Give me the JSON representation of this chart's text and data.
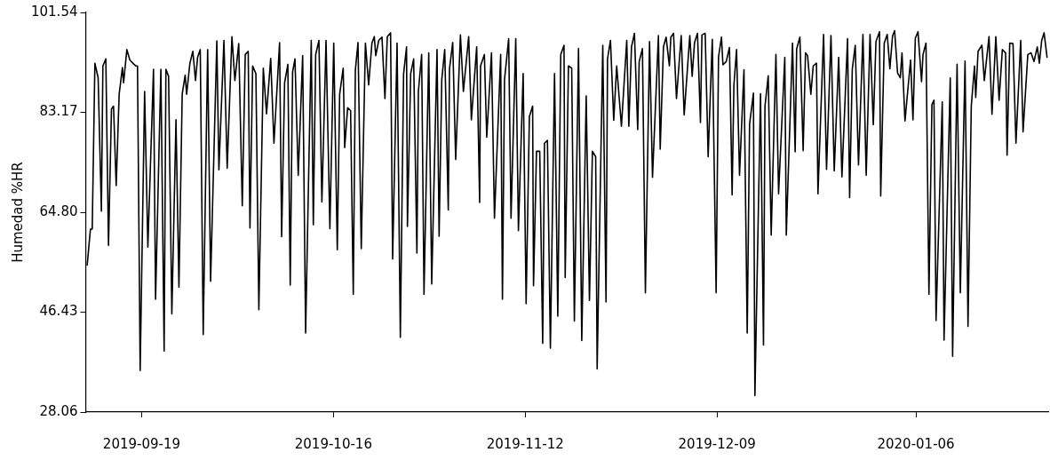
{
  "chart_data": {
    "type": "line",
    "ylabel": "Humedad %HR",
    "grid": false,
    "legend": false,
    "marker": "none",
    "line_style": "solid",
    "xlim": [
      "2019-09-11T03:00",
      "2020-01-24T15:00"
    ],
    "xticks": [
      "2019-09-19",
      "2019-10-16",
      "2019-11-12",
      "2019-12-09",
      "2020-01-06"
    ],
    "ylim": [
      28.06,
      101.54
    ],
    "yticks": [
      28.06,
      46.43,
      {
        "value": 64.8,
        "label": "64.80"
      },
      83.17,
      101.54
    ],
    "series": [
      {
        "color": "#000000",
        "x": [
          "2019-09-11T08:00",
          "2019-09-11T19:00",
          "2019-09-12T01:00",
          "2019-09-12T10:00",
          "2019-09-12T21:00",
          "2019-09-13T08:00",
          "2019-09-13T13:00",
          "2019-09-13T23:00",
          "2019-09-14T08:00",
          "2019-09-14T18:00",
          "2019-09-15T01:00",
          "2019-09-15T10:00",
          "2019-09-15T20:00",
          "2019-09-16T07:00",
          "2019-09-16T11:00",
          "2019-09-16T22:00",
          "2019-09-17T08:00",
          "2019-09-17T22:00",
          "2019-09-18T05:00",
          "2019-09-18T10:00",
          "2019-09-18T19:00",
          "2019-09-19T10:00",
          "2019-09-19T21:00",
          "2019-09-20T16:00",
          "2019-09-20T23:00",
          "2019-09-21T17:00",
          "2019-09-22T04:00",
          "2019-09-22T10:00",
          "2019-09-22T19:00",
          "2019-09-23T06:00",
          "2019-09-23T20:00",
          "2019-09-24T06:00",
          "2019-09-24T17:00",
          "2019-09-25T03:00",
          "2019-09-25T08:00",
          "2019-09-25T19:00",
          "2019-09-26T05:00",
          "2019-09-26T14:00",
          "2019-09-26T21:00",
          "2019-09-27T06:00",
          "2019-09-27T16:00",
          "2019-09-28T07:00",
          "2019-09-28T17:00",
          "2019-09-29T14:00",
          "2019-09-29T21:00",
          "2019-09-30T14:00",
          "2019-10-01T01:00",
          "2019-10-01T17:00",
          "2019-10-02T03:00",
          "2019-10-02T16:00",
          "2019-10-03T04:00",
          "2019-10-03T14:00",
          "2019-10-04T00:00",
          "2019-10-04T06:00",
          "2019-10-04T15:00",
          "2019-10-05T02:00",
          "2019-10-05T12:00",
          "2019-10-06T03:00",
          "2019-10-06T14:00",
          "2019-10-07T04:00",
          "2019-10-07T15:00",
          "2019-10-08T10:00",
          "2019-10-08T17:00",
          "2019-10-09T03:00",
          "2019-10-09T14:00",
          "2019-10-09T22:00",
          "2019-10-10T06:00",
          "2019-10-10T14:00",
          "2019-10-11T01:00",
          "2019-10-11T16:00",
          "2019-10-12T02:00",
          "2019-10-12T21:00",
          "2019-10-13T04:00",
          "2019-10-13T12:00",
          "2019-10-13T23:00",
          "2019-10-14T09:00",
          "2019-10-14T23:00",
          "2019-10-15T12:00",
          "2019-10-16T01:00",
          "2019-10-16T13:00",
          "2019-10-16T21:00",
          "2019-10-17T09:00",
          "2019-10-17T14:00",
          "2019-10-18T00:00",
          "2019-10-18T10:00",
          "2019-10-18T19:00",
          "2019-10-19T02:00",
          "2019-10-19T11:00",
          "2019-10-19T22:00",
          "2019-10-20T12:00",
          "2019-10-20T23:00",
          "2019-10-21T10:00",
          "2019-10-21T18:00",
          "2019-10-21T23:00",
          "2019-10-22T09:00",
          "2019-10-22T20:00",
          "2019-10-23T06:00",
          "2019-10-23T14:00",
          "2019-10-24T01:00",
          "2019-10-24T08:00",
          "2019-10-24T23:00",
          "2019-10-25T10:00",
          "2019-10-25T21:00",
          "2019-10-26T07:00",
          "2019-10-26T10:00",
          "2019-10-26T21:00",
          "2019-10-27T07:00",
          "2019-10-27T18:00",
          "2019-10-27T23:00",
          "2019-10-28T10:00",
          "2019-10-28T18:00",
          "2019-10-29T10:00",
          "2019-10-29T20:00",
          "2019-10-30T14:00",
          "2019-10-30T21:00",
          "2019-10-31T06:00",
          "2019-10-31T16:00",
          "2019-11-01T04:00",
          "2019-11-01T08:00",
          "2019-11-01T19:00",
          "2019-11-02T05:00",
          "2019-11-02T21:00",
          "2019-11-03T07:00",
          "2019-11-04T01:00",
          "2019-11-04T10:00",
          "2019-11-05T04:00",
          "2019-11-05T14:00",
          "2019-11-05T17:00",
          "2019-11-06T06:00",
          "2019-11-06T14:00",
          "2019-11-07T06:00",
          "2019-11-07T16:00",
          "2019-11-08T13:00",
          "2019-11-08T19:00",
          "2019-11-09T02:00",
          "2019-11-09T16:00",
          "2019-11-10T00:00",
          "2019-11-10T16:00",
          "2019-11-11T01:00",
          "2019-11-11T17:00",
          "2019-11-12T03:00",
          "2019-11-12T14:00",
          "2019-11-13T01:00",
          "2019-11-13T04:00",
          "2019-11-13T14:00",
          "2019-11-14T01:00",
          "2019-11-14T11:00",
          "2019-11-14T17:00",
          "2019-11-15T03:00",
          "2019-11-15T13:00",
          "2019-11-16T03:00",
          "2019-11-16T14:00",
          "2019-11-17T00:00",
          "2019-11-17T11:00",
          "2019-11-17T15:00",
          "2019-11-18T02:00",
          "2019-11-18T13:00",
          "2019-11-18T22:00",
          "2019-11-19T12:00",
          "2019-11-19T23:00",
          "2019-11-20T14:00",
          "2019-11-21T01:00",
          "2019-11-21T11:00",
          "2019-11-21T22:00",
          "2019-11-22T03:00",
          "2019-11-22T22:00",
          "2019-11-23T09:00",
          "2019-11-23T14:00",
          "2019-11-24T00:00",
          "2019-11-24T11:00",
          "2019-11-24T21:00",
          "2019-11-25T13:00",
          "2019-11-26T07:00",
          "2019-11-26T14:00",
          "2019-11-26T23:00",
          "2019-11-27T09:00",
          "2019-11-27T20:00",
          "2019-11-28T01:00",
          "2019-11-28T12:00",
          "2019-11-28T22:00",
          "2019-11-29T12:00",
          "2019-11-29T22:00",
          "2019-11-30T18:00",
          "2019-12-01T00:00",
          "2019-12-01T11:00",
          "2019-12-01T20:00",
          "2019-12-02T07:00",
          "2019-12-02T12:00",
          "2019-12-02T21:00",
          "2019-12-03T07:00",
          "2019-12-03T23:00",
          "2019-12-04T09:00",
          "2019-12-05T04:00",
          "2019-12-05T12:00",
          "2019-12-05T20:00",
          "2019-12-06T06:00",
          "2019-12-06T16:00",
          "2019-12-06T21:00",
          "2019-12-07T08:00",
          "2019-12-07T18:00",
          "2019-12-08T08:00",
          "2019-12-08T21:00",
          "2019-12-09T05:00",
          "2019-12-09T15:00",
          "2019-12-09T20:00",
          "2019-12-10T07:00",
          "2019-12-10T18:00",
          "2019-12-11T03:00",
          "2019-12-11T09:00",
          "2019-12-11T18:00",
          "2019-12-12T04:00",
          "2019-12-12T19:00",
          "2019-12-13T06:00",
          "2019-12-13T14:00",
          "2019-12-14T03:00",
          "2019-12-14T08:00",
          "2019-12-15T03:00",
          "2019-12-15T13:00",
          "2019-12-15T18:00",
          "2019-12-16T05:00",
          "2019-12-16T15:00",
          "2019-12-17T07:00",
          "2019-12-17T16:00",
          "2019-12-18T13:00",
          "2019-12-18T18:00",
          "2019-12-19T15:00",
          "2019-12-20T00:00",
          "2019-12-20T05:00",
          "2019-12-20T16:00",
          "2019-12-21T03:00",
          "2019-12-21T11:00",
          "2019-12-21T18:00",
          "2019-12-22T05:00",
          "2019-12-22T13:00",
          "2019-12-23T00:00",
          "2019-12-23T05:00",
          "2019-12-24T00:00",
          "2019-12-24T10:00",
          "2019-12-25T01:00",
          "2019-12-25T12:00",
          "2019-12-26T03:00",
          "2019-12-26T14:00",
          "2019-12-27T09:00",
          "2019-12-27T16:00",
          "2019-12-28T01:00",
          "2019-12-28T11:00",
          "2019-12-28T22:00",
          "2019-12-29T13:00",
          "2019-12-30T00:00",
          "2019-12-30T13:00",
          "2019-12-31T00:00",
          "2019-12-31T09:00",
          "2019-12-31T21:00",
          "2020-01-01T01:00",
          "2020-01-01T13:00",
          "2020-01-01T23:00",
          "2020-01-02T08:00",
          "2020-01-02T17:00",
          "2020-01-03T00:00",
          "2020-01-03T10:00",
          "2020-01-03T19:00",
          "2020-01-04T01:00",
          "2020-01-04T11:00",
          "2020-01-05T06:00",
          "2020-01-05T14:00",
          "2020-01-05T22:00",
          "2020-01-06T07:00",
          "2020-01-06T19:00",
          "2020-01-07T00:00",
          "2020-01-07T10:00",
          "2020-01-07T20:00",
          "2020-01-08T06:00",
          "2020-01-08T13:00",
          "2020-01-08T20:00",
          "2020-01-09T17:00",
          "2020-01-09T23:00",
          "2020-01-10T20:00",
          "2020-01-11T04:00",
          "2020-01-11T19:00",
          "2020-01-12T06:00",
          "2020-01-12T22:00",
          "2020-01-13T08:00",
          "2020-01-13T19:00",
          "2020-01-14T06:00",
          "2020-01-14T10:00",
          "2020-01-14T18:00",
          "2020-01-15T07:00",
          "2020-01-15T15:00",
          "2020-01-16T07:00",
          "2020-01-16T17:00",
          "2020-01-17T06:00",
          "2020-01-17T17:00",
          "2020-01-18T04:00",
          "2020-01-18T15:00",
          "2020-01-18T20:00",
          "2020-01-19T05:00",
          "2020-01-19T16:00",
          "2020-01-20T02:00",
          "2020-01-20T18:00",
          "2020-01-21T02:00",
          "2020-01-21T18:00",
          "2020-01-22T05:00",
          "2020-01-22T15:00",
          "2020-01-23T02:00",
          "2020-01-23T09:00",
          "2020-01-23T17:00",
          "2020-01-24T01:00",
          "2020-01-24T11:00"
        ],
        "values": [
          55.1,
          61.7,
          61.7,
          92.2,
          89.5,
          65.0,
          91.7,
          93.0,
          58.7,
          83.8,
          84.3,
          69.7,
          86.5,
          91.4,
          88.6,
          94.7,
          92.8,
          92.0,
          91.7,
          91.7,
          35.7,
          87.0,
          58.4,
          91.1,
          48.8,
          91.1,
          39.3,
          91.1,
          89.8,
          46.1,
          81.8,
          51.0,
          86.5,
          90.0,
          86.5,
          92.2,
          94.4,
          89.0,
          93.3,
          94.7,
          42.3,
          94.7,
          52.1,
          96.3,
          72.6,
          96.4,
          72.9,
          97.1,
          89.0,
          95.8,
          66.0,
          93.8,
          94.4,
          61.9,
          91.7,
          90.3,
          46.9,
          91.3,
          82.9,
          93.1,
          77.5,
          96.0,
          60.3,
          88.6,
          92.0,
          51.4,
          90.6,
          93.0,
          71.6,
          93.6,
          42.6,
          96.4,
          62.5,
          93.8,
          96.4,
          66.7,
          96.4,
          61.8,
          95.9,
          57.9,
          86.5,
          91.3,
          76.7,
          84.0,
          83.5,
          49.7,
          90.9,
          96.0,
          58.1,
          95.9,
          88.2,
          95.9,
          97.1,
          93.6,
          96.4,
          97.0,
          85.7,
          97.1,
          97.8,
          56.2,
          95.9,
          41.8,
          90.2,
          95.2,
          62.2,
          90.3,
          93.0,
          57.3,
          87.0,
          93.8,
          49.7,
          94.1,
          51.6,
          94.7,
          60.4,
          89.2,
          94.7,
          65.2,
          91.1,
          96.0,
          74.5,
          97.4,
          87.0,
          97.1,
          81.8,
          95.2,
          66.6,
          91.7,
          93.8,
          78.6,
          94.1,
          63.7,
          93.8,
          48.8,
          89.2,
          96.7,
          63.7,
          96.7,
          61.4,
          90.3,
          48.0,
          82.4,
          84.3,
          51.3,
          76.0,
          76.0,
          40.7,
          77.5,
          78.0,
          39.8,
          90.3,
          45.7,
          93.8,
          95.5,
          52.8,
          91.7,
          91.3,
          44.8,
          94.9,
          41.2,
          86.2,
          48.6,
          76.0,
          75.0,
          36.0,
          95.5,
          48.3,
          93.0,
          96.4,
          81.7,
          91.7,
          80.6,
          96.4,
          80.6,
          95.2,
          97.7,
          80.0,
          92.5,
          94.9,
          50.0,
          96.2,
          71.2,
          97.3,
          76.4,
          95.2,
          97.0,
          91.7,
          97.0,
          97.7,
          85.7,
          97.3,
          82.7,
          97.3,
          89.8,
          96.0,
          97.7,
          81.3,
          97.4,
          97.7,
          75.0,
          96.6,
          50.0,
          93.3,
          97.0,
          91.9,
          92.5,
          95.1,
          68.0,
          88.1,
          94.7,
          71.6,
          91.0,
          42.6,
          81.0,
          86.7,
          31.1,
          86.6,
          40.4,
          84.3,
          89.9,
          60.6,
          93.8,
          68.2,
          93.3,
          60.6,
          95.9,
          75.9,
          94.8,
          97.0,
          76.1,
          94.1,
          93.6,
          86.5,
          91.7,
          92.2,
          68.2,
          97.5,
          72.7,
          97.3,
          72.4,
          93.3,
          71.3,
          96.7,
          67.5,
          91.1,
          95.5,
          73.5,
          97.5,
          71.6,
          97.5,
          80.9,
          96.2,
          98.0,
          67.8,
          95.9,
          97.5,
          91.2,
          97.2,
          98.2,
          90.4,
          89.5,
          94.1,
          81.6,
          92.8,
          81.8,
          96.8,
          98.0,
          88.8,
          93.8,
          95.9,
          49.7,
          84.6,
          85.4,
          44.9,
          85.1,
          41.3,
          89.5,
          38.3,
          92.0,
          50.0,
          92.6,
          43.8,
          84.3,
          91.7,
          85.9,
          94.4,
          95.5,
          89.0,
          97.1,
          82.8,
          97.1,
          85.4,
          94.7,
          94.1,
          75.3,
          95.9,
          95.8,
          77.5,
          96.4,
          79.6,
          93.8,
          94.1,
          92.5,
          95.2,
          92.2,
          96.4,
          97.8,
          93.3
        ]
      }
    ]
  }
}
